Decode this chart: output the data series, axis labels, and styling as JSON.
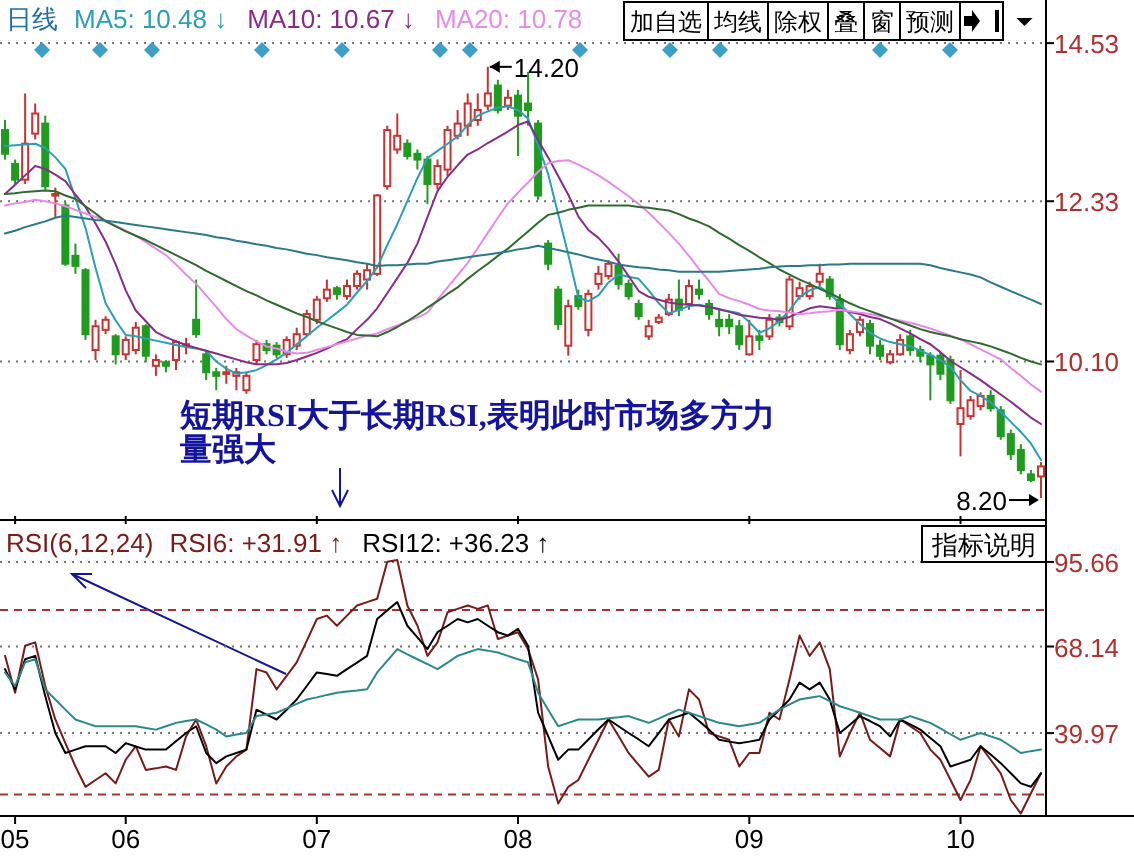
{
  "chart_data": [
    {
      "type": "candlestick",
      "legend_title": "日线",
      "legend": "top left",
      "grid": "y",
      "tick_labels": "y",
      "categories": [
        null,
        "05",
        null,
        null,
        null,
        null,
        null,
        null,
        null,
        null,
        null,
        null,
        "06",
        null,
        null,
        null,
        null,
        null,
        null,
        null,
        null,
        null,
        null,
        null,
        null,
        null,
        null,
        null,
        null,
        null,
        null,
        "07",
        null,
        null,
        null,
        null,
        null,
        null,
        null,
        null,
        null,
        null,
        null,
        null,
        null,
        null,
        null,
        null,
        null,
        null,
        null,
        "08",
        null,
        null,
        null,
        null,
        null,
        null,
        null,
        null,
        null,
        null,
        null,
        null,
        null,
        null,
        null,
        null,
        null,
        null,
        null,
        null,
        null,
        null,
        "09",
        null,
        null,
        null,
        null,
        null,
        null,
        null,
        null,
        null,
        null,
        null,
        null,
        null,
        null,
        null,
        null,
        null,
        null,
        null,
        null,
        "10",
        null,
        null,
        null,
        null,
        null,
        null,
        null,
        null
      ],
      "ylim": [
        7.95,
        15.13
      ],
      "yticks": [
        14.53,
        12.33,
        {
          "value": 10.1,
          "label": "10.10"
        }
      ],
      "ohlc": [
        [
          13.32,
          13.46,
          12.91,
          12.99
        ],
        [
          12.85,
          12.91,
          12.57,
          12.63
        ],
        [
          12.63,
          13.83,
          12.57,
          13.13
        ],
        [
          13.27,
          13.69,
          13.19,
          13.55
        ],
        [
          13.41,
          13.52,
          12.49,
          12.54
        ],
        [
          12.41,
          12.52,
          12.1,
          12.43
        ],
        [
          12.27,
          12.32,
          11.43,
          11.46
        ],
        [
          11.57,
          11.74,
          11.32,
          11.43
        ],
        [
          11.37,
          11.4,
          10.4,
          10.48
        ],
        [
          10.26,
          10.68,
          10.12,
          10.59
        ],
        [
          10.54,
          10.73,
          10.48,
          10.68
        ],
        [
          10.45,
          10.48,
          10.06,
          10.2
        ],
        [
          10.2,
          10.45,
          10.12,
          10.4
        ],
        [
          10.26,
          10.65,
          10.2,
          10.57
        ],
        [
          10.59,
          10.62,
          10.09,
          10.18
        ],
        [
          10.04,
          10.2,
          9.9,
          10.12
        ],
        [
          10.09,
          10.12,
          9.95,
          10.04
        ],
        [
          10.12,
          10.4,
          9.98,
          10.37
        ],
        [
          10.32,
          10.43,
          10.2,
          10.34
        ],
        [
          10.68,
          11.24,
          10.43,
          10.48
        ],
        [
          10.2,
          10.26,
          9.84,
          9.95
        ],
        [
          9.95,
          10.01,
          9.7,
          9.9
        ],
        [
          9.93,
          10.04,
          9.79,
          9.95
        ],
        [
          9.9,
          10.01,
          9.7,
          9.95
        ],
        [
          9.7,
          9.95,
          9.65,
          9.9
        ],
        [
          10.12,
          10.4,
          10.06,
          10.34
        ],
        [
          10.34,
          10.4,
          10.2,
          10.26
        ],
        [
          10.32,
          10.37,
          10.15,
          10.2
        ],
        [
          10.2,
          10.45,
          10.15,
          10.4
        ],
        [
          10.32,
          10.57,
          10.26,
          10.48
        ],
        [
          10.48,
          10.82,
          10.45,
          10.76
        ],
        [
          10.68,
          11.01,
          10.62,
          10.96
        ],
        [
          10.98,
          11.24,
          10.93,
          11.1
        ],
        [
          11.12,
          11.15,
          10.96,
          11.04
        ],
        [
          11.01,
          11.24,
          10.96,
          11.15
        ],
        [
          11.15,
          11.37,
          11.1,
          11.32
        ],
        [
          11.24,
          11.46,
          11.1,
          11.37
        ],
        [
          11.32,
          12.43,
          11.29,
          12.41
        ],
        [
          12.54,
          13.38,
          12.49,
          13.32
        ],
        [
          13.05,
          13.55,
          12.99,
          13.24
        ],
        [
          13.13,
          13.19,
          12.91,
          12.96
        ],
        [
          12.99,
          13.05,
          12.77,
          12.91
        ],
        [
          12.91,
          12.96,
          12.29,
          12.57
        ],
        [
          12.57,
          12.91,
          12.49,
          12.82
        ],
        [
          12.77,
          13.38,
          12.68,
          13.32
        ],
        [
          13.24,
          13.6,
          13.19,
          13.41
        ],
        [
          13.38,
          13.83,
          13.24,
          13.69
        ],
        [
          13.46,
          13.83,
          13.38,
          13.6
        ],
        [
          13.66,
          14.2,
          13.6,
          13.83
        ],
        [
          13.94,
          14.02,
          13.55,
          13.6
        ],
        [
          13.66,
          13.88,
          13.6,
          13.77
        ],
        [
          13.8,
          13.88,
          12.96,
          13.52
        ],
        [
          13.69,
          14.13,
          13.38,
          13.6
        ],
        [
          13.41,
          13.46,
          12.35,
          12.41
        ],
        [
          11.74,
          11.79,
          11.37,
          11.46
        ],
        [
          11.1,
          11.15,
          10.54,
          10.62
        ],
        [
          10.32,
          10.96,
          10.18,
          10.87
        ],
        [
          11.01,
          11.1,
          10.82,
          10.87
        ],
        [
          10.54,
          11.1,
          10.45,
          11.04
        ],
        [
          11.18,
          11.43,
          11.1,
          11.32
        ],
        [
          11.29,
          11.51,
          11.24,
          11.46
        ],
        [
          11.43,
          11.6,
          11.1,
          11.18
        ],
        [
          11.18,
          11.24,
          10.96,
          11.01
        ],
        [
          10.9,
          10.96,
          10.68,
          10.73
        ],
        [
          10.45,
          10.68,
          10.4,
          10.59
        ],
        [
          10.65,
          10.76,
          10.62,
          10.71
        ],
        [
          10.76,
          11.04,
          10.73,
          10.96
        ],
        [
          10.96,
          11.24,
          10.73,
          10.82
        ],
        [
          10.9,
          11.24,
          10.82,
          11.15
        ],
        [
          11.1,
          11.24,
          10.96,
          11.04
        ],
        [
          10.9,
          10.96,
          10.68,
          10.76
        ],
        [
          10.68,
          10.82,
          10.45,
          10.59
        ],
        [
          10.68,
          10.76,
          10.48,
          10.59
        ],
        [
          10.59,
          10.68,
          10.26,
          10.34
        ],
        [
          10.2,
          10.68,
          10.18,
          10.45
        ],
        [
          10.45,
          10.54,
          10.26,
          10.4
        ],
        [
          10.45,
          10.76,
          10.4,
          10.68
        ],
        [
          10.71,
          10.76,
          10.59,
          10.65
        ],
        [
          10.59,
          11.29,
          10.54,
          11.24
        ],
        [
          11.01,
          11.21,
          10.96,
          11.12
        ],
        [
          11.01,
          11.21,
          10.96,
          11.15
        ],
        [
          11.21,
          11.46,
          11.15,
          11.32
        ],
        [
          11.24,
          11.29,
          10.96,
          11.01
        ],
        [
          10.96,
          11.04,
          10.26,
          10.34
        ],
        [
          10.26,
          10.54,
          10.2,
          10.48
        ],
        [
          10.51,
          10.73,
          10.45,
          10.68
        ],
        [
          10.62,
          10.68,
          10.2,
          10.32
        ],
        [
          10.32,
          10.4,
          10.12,
          10.18
        ],
        [
          10.09,
          10.26,
          10.06,
          10.2
        ],
        [
          10.2,
          10.48,
          10.18,
          10.4
        ],
        [
          10.45,
          10.54,
          10.18,
          10.26
        ],
        [
          10.26,
          10.32,
          10.09,
          10.18
        ],
        [
          10.18,
          10.23,
          9.56,
          10.06
        ],
        [
          10.18,
          10.23,
          9.84,
          9.93
        ],
        [
          10.12,
          10.18,
          9.51,
          9.56
        ],
        [
          9.23,
          9.98,
          8.78,
          9.45
        ],
        [
          9.34,
          9.62,
          9.29,
          9.56
        ],
        [
          9.48,
          9.67,
          9.42,
          9.62
        ],
        [
          9.62,
          9.7,
          9.4,
          9.45
        ],
        [
          9.42,
          9.48,
          9.01,
          9.06
        ],
        [
          9.09,
          9.15,
          8.73,
          8.81
        ],
        [
          8.87,
          8.95,
          8.53,
          8.59
        ],
        [
          8.53,
          8.59,
          8.42,
          8.45
        ],
        [
          8.5,
          8.7,
          8.2,
          8.64
        ]
      ],
      "series": [
        {
          "type": "line",
          "name": "MA5: 10.48 ↓",
          "color": "#2a9fb5",
          "values": [
            13.1,
            13.11,
            13.12,
            13.13,
            13.07,
            12.94,
            12.78,
            12.37,
            11.96,
            11.4,
            10.91,
            10.67,
            10.47,
            10.45,
            10.42,
            10.39,
            10.36,
            10.33,
            10.3,
            10.28,
            10.25,
            10.1,
            10.0,
            9.93,
            9.95,
            9.98,
            10.05,
            10.13,
            10.22,
            10.34,
            10.45,
            10.57,
            10.67,
            10.78,
            10.89,
            11.06,
            11.22,
            11.41,
            11.72,
            12.01,
            12.33,
            12.65,
            12.93,
            13.03,
            13.13,
            13.23,
            13.39,
            13.52,
            13.58,
            13.63,
            13.65,
            13.6,
            13.48,
            13.11,
            12.71,
            12.15,
            11.59,
            10.99,
            10.94,
            11.02,
            11.2,
            11.31,
            11.28,
            11.25,
            11.09,
            10.91,
            10.77,
            10.82,
            10.87,
            10.89,
            10.86,
            10.82,
            10.8,
            10.77,
            10.65,
            10.5,
            10.56,
            10.66,
            10.81,
            11.0,
            11.09,
            11.14,
            11.05,
            10.9,
            10.76,
            10.62,
            10.5,
            10.42,
            10.37,
            10.34,
            10.31,
            10.25,
            10.19,
            10.12,
            10.02,
            9.84,
            9.69,
            9.62,
            9.53,
            9.4,
            9.26,
            9.12,
            8.96,
            8.73
          ]
        },
        {
          "type": "line",
          "name": "MA10: 10.67 ↓",
          "color": "#8a2b8a",
          "values": [
            12.43,
            12.56,
            12.69,
            12.82,
            12.78,
            12.7,
            12.61,
            12.42,
            12.25,
            12.02,
            11.77,
            11.45,
            11.09,
            10.81,
            10.66,
            10.51,
            10.44,
            10.38,
            10.33,
            10.29,
            10.25,
            10.21,
            10.17,
            10.13,
            10.09,
            10.06,
            10.06,
            10.06,
            10.08,
            10.12,
            10.17,
            10.22,
            10.28,
            10.35,
            10.41,
            10.55,
            10.68,
            10.84,
            11.05,
            11.26,
            11.47,
            11.74,
            12.11,
            12.47,
            12.67,
            12.83,
            12.98,
            13.05,
            13.14,
            13.22,
            13.3,
            13.39,
            13.44,
            13.18,
            12.94,
            12.68,
            12.42,
            12.12,
            11.93,
            11.82,
            11.67,
            11.49,
            11.29,
            11.08,
            11.0,
            10.96,
            10.92,
            10.9,
            10.89,
            10.88,
            10.86,
            10.83,
            10.79,
            10.75,
            10.73,
            10.71,
            10.7,
            10.68,
            10.72,
            10.78,
            10.84,
            10.87,
            10.85,
            10.83,
            10.79,
            10.76,
            10.72,
            10.69,
            10.63,
            10.56,
            10.49,
            10.41,
            10.34,
            10.23,
            10.11,
            10.02,
            9.93,
            9.84,
            9.74,
            9.64,
            9.54,
            9.43,
            9.32,
            9.23
          ]
        },
        {
          "type": "line",
          "name": "MA20: 10.78",
          "color": "#e88ae8",
          "values": [
            12.27,
            12.3,
            12.32,
            12.35,
            12.33,
            12.3,
            12.26,
            12.21,
            12.16,
            12.11,
            12.06,
            11.99,
            11.92,
            11.85,
            11.76,
            11.67,
            11.58,
            11.45,
            11.31,
            11.18,
            11.02,
            10.86,
            10.69,
            10.55,
            10.46,
            10.38,
            10.31,
            10.28,
            10.24,
            10.21,
            10.22,
            10.26,
            10.3,
            10.34,
            10.38,
            10.42,
            10.46,
            10.49,
            10.55,
            10.6,
            10.66,
            10.71,
            10.78,
            10.96,
            11.13,
            11.3,
            11.47,
            11.68,
            11.89,
            12.1,
            12.3,
            12.45,
            12.59,
            12.74,
            12.86,
            12.89,
            12.9,
            12.84,
            12.77,
            12.69,
            12.6,
            12.5,
            12.4,
            12.29,
            12.17,
            12.03,
            11.89,
            11.74,
            11.57,
            11.39,
            11.22,
            11.04,
            10.98,
            10.94,
            10.89,
            10.83,
            10.81,
            10.8,
            10.78,
            10.76,
            10.77,
            10.79,
            10.8,
            10.82,
            10.8,
            10.78,
            10.76,
            10.73,
            10.7,
            10.67,
            10.64,
            10.6,
            10.56,
            10.51,
            10.46,
            10.41,
            10.34,
            10.27,
            10.2,
            10.13,
            10.01,
            9.9,
            9.78,
            9.68
          ]
        },
        {
          "type": "line",
          "color": "#2e6b2e",
          "values": [
            12.43,
            12.44,
            12.46,
            12.47,
            12.48,
            12.47,
            12.41,
            12.36,
            12.26,
            12.16,
            12.05,
            11.98,
            11.91,
            11.85,
            11.79,
            11.72,
            11.65,
            11.58,
            11.51,
            11.44,
            11.36,
            11.29,
            11.22,
            11.15,
            11.08,
            11.02,
            10.95,
            10.89,
            10.83,
            10.77,
            10.72,
            10.66,
            10.61,
            10.56,
            10.51,
            10.47,
            10.46,
            10.45,
            10.51,
            10.58,
            10.66,
            10.75,
            10.85,
            10.94,
            11.04,
            11.13,
            11.25,
            11.36,
            11.46,
            11.57,
            11.67,
            11.79,
            11.91,
            12.03,
            12.14,
            12.17,
            12.21,
            12.24,
            12.27,
            12.27,
            12.27,
            12.27,
            12.27,
            12.25,
            12.24,
            12.22,
            12.2,
            12.15,
            12.09,
            12.04,
            11.98,
            11.89,
            11.81,
            11.72,
            11.64,
            11.55,
            11.47,
            11.38,
            11.31,
            11.24,
            11.18,
            11.11,
            11.05,
            10.98,
            10.91,
            10.85,
            10.8,
            10.75,
            10.7,
            10.65,
            10.6,
            10.55,
            10.51,
            10.48,
            10.45,
            10.41,
            10.38,
            10.35,
            10.31,
            10.26,
            10.21,
            10.15,
            10.1,
            10.06
          ]
        },
        {
          "type": "line",
          "color": "#2a7a8a",
          "values": [
            11.88,
            11.92,
            11.97,
            12.01,
            12.05,
            12.1,
            12.13,
            12.11,
            12.09,
            12.07,
            12.06,
            12.04,
            12.02,
            12.0,
            11.98,
            11.96,
            11.94,
            11.92,
            11.9,
            11.88,
            11.86,
            11.83,
            11.81,
            11.78,
            11.76,
            11.73,
            11.71,
            11.68,
            11.66,
            11.63,
            11.6,
            11.58,
            11.55,
            11.53,
            11.51,
            11.48,
            11.46,
            11.43,
            11.44,
            11.44,
            11.45,
            11.46,
            11.46,
            11.49,
            11.51,
            11.53,
            11.55,
            11.57,
            11.59,
            11.61,
            11.63,
            11.66,
            11.68,
            11.71,
            11.68,
            11.65,
            11.62,
            11.59,
            11.55,
            11.52,
            11.49,
            11.45,
            11.43,
            11.41,
            11.4,
            11.38,
            11.37,
            11.35,
            11.35,
            11.35,
            11.35,
            11.35,
            11.36,
            11.37,
            11.38,
            11.39,
            11.41,
            11.42,
            11.43,
            11.43,
            11.44,
            11.44,
            11.45,
            11.45,
            11.46,
            11.46,
            11.46,
            11.46,
            11.46,
            11.46,
            11.46,
            11.46,
            11.44,
            11.4,
            11.37,
            11.34,
            11.31,
            11.27,
            11.2,
            11.14,
            11.08,
            11.02,
            10.96,
            10.9
          ]
        }
      ],
      "annotations": [
        "14.20",
        "8.20",
        "短期RSI大于长期RSI,表明此时市场多方力量强大",
        "加自选",
        "均线",
        "除权",
        "叠",
        "窗",
        "预测"
      ]
    },
    {
      "type": "line",
      "legend_title": "RSI(6,12,24)",
      "legend": "top left",
      "grid": "y",
      "categories": [
        null,
        "05",
        null,
        null,
        null,
        null,
        null,
        null,
        null,
        null,
        null,
        null,
        "06",
        null,
        null,
        null,
        null,
        null,
        null,
        null,
        null,
        null,
        null,
        null,
        null,
        null,
        null,
        null,
        null,
        null,
        null,
        "07",
        null,
        null,
        null,
        null,
        null,
        null,
        null,
        null,
        null,
        null,
        null,
        null,
        null,
        null,
        null,
        null,
        null,
        null,
        null,
        "08",
        null,
        null,
        null,
        null,
        null,
        null,
        null,
        null,
        null,
        null,
        null,
        null,
        null,
        null,
        null,
        null,
        null,
        null,
        null,
        null,
        null,
        null,
        "09",
        null,
        null,
        null,
        null,
        null,
        null,
        null,
        null,
        null,
        null,
        null,
        null,
        null,
        null,
        null,
        null,
        null,
        null,
        null,
        null,
        "10",
        null,
        null,
        null,
        null,
        null,
        null,
        null,
        null
      ],
      "ylim": [
        13,
        108
      ],
      "yticks": [
        95.66,
        68.14,
        39.97
      ],
      "ref_lines": [
        {
          "axis": "y",
          "value": 80,
          "color": "#a83232",
          "line_style": "dashed"
        },
        {
          "axis": "y",
          "value": 20,
          "color": "#a83232",
          "line_style": "dashed"
        }
      ],
      "series": [
        {
          "name": "RSI6: +31.91 ↑",
          "color": "#7a1a1a",
          "values": [
            65.1,
            53.1,
            68.4,
            69.5,
            55.3,
            44.4,
            36.7,
            29.1,
            22.5,
            24.7,
            26.9,
            23.6,
            31.3,
            35.7,
            28.0,
            28.5,
            29.1,
            28.0,
            38.9,
            44.4,
            35.7,
            23.6,
            29.1,
            32.4,
            34.6,
            60.8,
            59.7,
            54.2,
            58.6,
            63.0,
            70.0,
            77.1,
            78.2,
            74.9,
            78.2,
            81.5,
            82.6,
            83.7,
            95.7,
            96.3,
            81.5,
            75.0,
            65.1,
            69.5,
            79.3,
            80.4,
            81.5,
            80.4,
            81.5,
            70.6,
            71.7,
            72.8,
            67.3,
            57.5,
            29.1,
            17.1,
            22.5,
            24.7,
            31.3,
            37.8,
            44.4,
            39.0,
            33.5,
            29.6,
            25.8,
            28.0,
            44.4,
            38.9,
            54.2,
            50.9,
            40.0,
            38.9,
            37.8,
            29.1,
            33.5,
            33.5,
            46.6,
            44.4,
            57.5,
            71.7,
            65.1,
            69.5,
            60.8,
            32.4,
            40.0,
            46.6,
            37.8,
            35.1,
            32.4,
            44.4,
            42.2,
            40.0,
            34.6,
            31.3,
            24.8,
            18.2,
            24.7,
            35.7,
            31.3,
            26.9,
            18.2,
            13.8,
            20.4,
            26.9
          ]
        },
        {
          "name": "RSI12: +36.23 ↑",
          "color": "#000000",
          "values": [
            60.8,
            54.2,
            64.0,
            65.1,
            52.0,
            40.0,
            33.5,
            34.6,
            35.7,
            35.7,
            35.7,
            33.5,
            36.7,
            35.6,
            34.6,
            34.6,
            34.6,
            37.3,
            40.0,
            42.2,
            33.5,
            30.2,
            32.4,
            33.5,
            34.6,
            47.6,
            46.0,
            44.4,
            47.6,
            50.9,
            55.3,
            59.7,
            59.2,
            58.6,
            60.8,
            62.9,
            65.1,
            77.1,
            79.9,
            82.6,
            74.9,
            71.1,
            67.3,
            72.8,
            74.9,
            77.1,
            76.0,
            77.1,
            74.9,
            72.8,
            71.7,
            73.9,
            68.4,
            46.6,
            39.0,
            31.3,
            34.6,
            34.6,
            37.9,
            41.2,
            44.4,
            42.2,
            40.0,
            37.9,
            35.7,
            40.0,
            44.4,
            45.5,
            46.6,
            43.9,
            41.1,
            37.8,
            37.2,
            36.7,
            37.2,
            37.8,
            44.4,
            47.6,
            50.9,
            56.4,
            54.2,
            56.4,
            50.9,
            40.0,
            42.7,
            45.5,
            43.9,
            42.2,
            38.9,
            44.4,
            42.8,
            41.1,
            38.4,
            35.7,
            29.1,
            30.2,
            31.3,
            35.7,
            33.0,
            30.2,
            26.9,
            23.6,
            22.5,
            26.9
          ]
        },
        {
          "color": "#2a8a8a",
          "values": [
            59.7,
            55.3,
            63.0,
            64.0,
            54.2,
            50.9,
            47.6,
            44.4,
            43.3,
            42.2,
            42.2,
            42.2,
            42.2,
            42.2,
            41.6,
            41.1,
            42.2,
            43.3,
            43.9,
            44.4,
            42.8,
            41.1,
            38.9,
            39.5,
            40.0,
            45.5,
            46.0,
            46.6,
            48.0,
            49.5,
            50.9,
            51.6,
            52.4,
            53.1,
            53.5,
            53.8,
            54.2,
            59.7,
            63.5,
            67.3,
            65.6,
            64.0,
            62.4,
            60.8,
            62.9,
            65.1,
            66.2,
            67.3,
            66.8,
            66.2,
            65.1,
            64.0,
            63.0,
            53.1,
            47.6,
            42.2,
            43.3,
            44.4,
            44.4,
            44.4,
            44.8,
            45.1,
            45.5,
            44.4,
            43.3,
            44.7,
            46.2,
            47.6,
            46.6,
            45.5,
            44.4,
            43.3,
            42.8,
            42.2,
            42.8,
            43.3,
            45.5,
            47.6,
            49.3,
            50.9,
            51.5,
            52.0,
            50.4,
            48.7,
            47.7,
            46.6,
            45.5,
            44.4,
            44.4,
            44.4,
            45.5,
            44.4,
            43.3,
            41.5,
            39.6,
            37.8,
            38.9,
            40.0,
            38.9,
            37.8,
            35.7,
            33.5,
            34.1,
            34.6
          ]
        }
      ],
      "annotations": [
        "指标说明"
      ]
    }
  ]
}
